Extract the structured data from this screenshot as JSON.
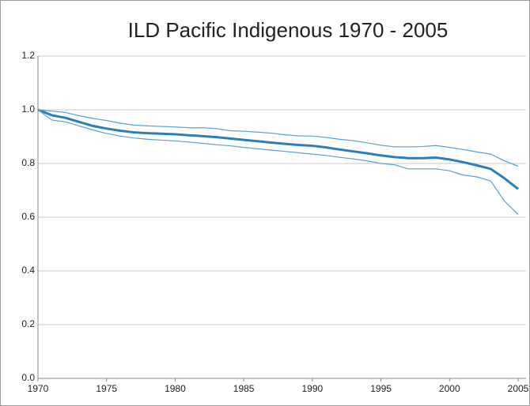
{
  "chart_data": {
    "type": "line",
    "title": "ILD Pacific Indigenous 1970 - 2005",
    "x": [
      1970,
      1971,
      1972,
      1973,
      1974,
      1975,
      1976,
      1977,
      1978,
      1979,
      1980,
      1981,
      1982,
      1983,
      1984,
      1985,
      1986,
      1987,
      1988,
      1989,
      1990,
      1991,
      1992,
      1993,
      1994,
      1995,
      1996,
      1997,
      1998,
      1999,
      2000,
      2001,
      2002,
      2003,
      2004,
      2005
    ],
    "series": [
      {
        "color": "#2a7fb8",
        "values": [
          1.0,
          0.98,
          0.97,
          0.955,
          0.94,
          0.93,
          0.922,
          0.916,
          0.913,
          0.911,
          0.909,
          0.905,
          0.902,
          0.898,
          0.893,
          0.888,
          0.883,
          0.878,
          0.873,
          0.869,
          0.866,
          0.86,
          0.852,
          0.845,
          0.838,
          0.83,
          0.824,
          0.82,
          0.82,
          0.822,
          0.815,
          0.805,
          0.793,
          0.78,
          0.745,
          0.705
        ]
      },
      {
        "color": "#5aa0d0",
        "values": [
          1.0,
          0.995,
          0.99,
          0.978,
          0.968,
          0.96,
          0.95,
          0.943,
          0.94,
          0.938,
          0.936,
          0.933,
          0.933,
          0.93,
          0.922,
          0.92,
          0.917,
          0.913,
          0.907,
          0.903,
          0.902,
          0.897,
          0.89,
          0.885,
          0.877,
          0.868,
          0.862,
          0.862,
          0.863,
          0.867,
          0.86,
          0.852,
          0.843,
          0.835,
          0.81,
          0.79
        ]
      },
      {
        "color": "#5aa0d0",
        "values": [
          1.0,
          0.962,
          0.955,
          0.94,
          0.925,
          0.912,
          0.902,
          0.895,
          0.89,
          0.887,
          0.884,
          0.88,
          0.875,
          0.87,
          0.866,
          0.86,
          0.855,
          0.85,
          0.845,
          0.84,
          0.835,
          0.83,
          0.823,
          0.817,
          0.81,
          0.8,
          0.795,
          0.78,
          0.78,
          0.78,
          0.773,
          0.757,
          0.75,
          0.735,
          0.66,
          0.61
        ]
      }
    ],
    "xlim": [
      1970,
      2005
    ],
    "xticks": [
      1970,
      1975,
      1980,
      1985,
      1990,
      1995,
      2000,
      2005
    ],
    "ylim": [
      0,
      1.2
    ],
    "yticks": [
      {
        "value": 0,
        "label": "0.0"
      },
      0.2,
      0.4,
      0.6,
      0.8,
      {
        "value": 1,
        "label": "1.0"
      },
      1.2
    ],
    "grid": true
  }
}
